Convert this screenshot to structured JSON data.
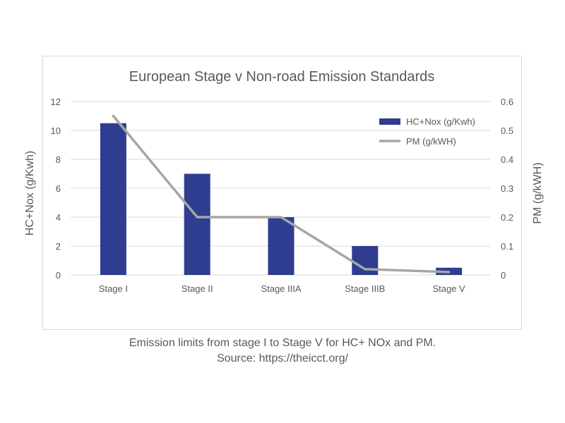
{
  "chart_data": {
    "type": "bar",
    "title": "European Stage v Non-road Emission Standards",
    "categories": [
      "Stage I",
      "Stage II",
      "Stage IIIA",
      "Stage IIIB",
      "Stage V"
    ],
    "series": [
      {
        "name": "HC+Nox (g/Kwh)",
        "type": "bar",
        "axis": "left",
        "color": "#2e3d8f",
        "values": [
          10.5,
          7,
          4,
          2,
          0.5
        ]
      },
      {
        "name": "PM (g/kWH)",
        "type": "line",
        "axis": "right",
        "color": "#a6a6a6",
        "values": [
          0.55,
          0.2,
          0.2,
          0.02,
          0.01
        ]
      }
    ],
    "ylabel": "HC+Nox (g/Kwh)",
    "y2label": "PM (g/kWH)",
    "ylim": [
      0,
      12
    ],
    "y2lim": [
      0,
      0.6
    ],
    "yticks": [
      "0",
      "2",
      "4",
      "6",
      "8",
      "10",
      "12"
    ],
    "y2ticks": [
      "0",
      "0.1",
      "0.2",
      "0.3",
      "0.4",
      "0.5",
      "0.6"
    ],
    "grid": true,
    "legend_position": "top-right"
  },
  "caption": {
    "line1": "Emission limits from stage I to Stage V for HC+ NOx and PM.",
    "line2": "Source: https://theicct.org/"
  }
}
